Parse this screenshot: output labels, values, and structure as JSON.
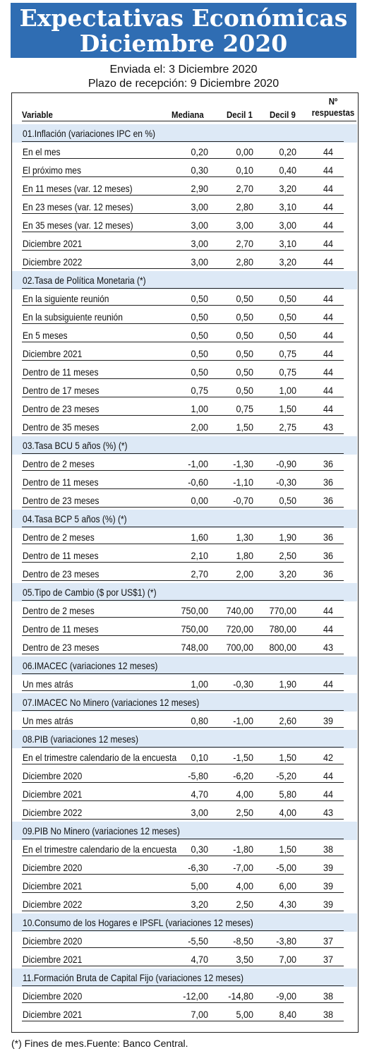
{
  "title": {
    "line1": "Expectativas Económicas",
    "line2": "Diciembre 2020"
  },
  "sent": "Enviada el: 3 Diciembre 2020",
  "deadline": "Plazo de recepción: 9 Diciembre 2020",
  "columns": {
    "variable": "Variable",
    "mediana": "Mediana",
    "decil1": "Decil 1",
    "decil9": "Decil 9",
    "n1": "Nº",
    "n2": "respuestas"
  },
  "rows": [
    {
      "type": "section",
      "label": "01.Inflación (variaciones IPC en %)"
    },
    {
      "type": "data",
      "label": "En el mes",
      "mediana": "0,20",
      "decil1": "0,00",
      "decil9": "0,20",
      "n": "44"
    },
    {
      "type": "data",
      "label": "El próximo mes",
      "mediana": "0,30",
      "decil1": "0,10",
      "decil9": "0,40",
      "n": "44"
    },
    {
      "type": "data",
      "label": "En 11 meses (var. 12 meses)",
      "mediana": "2,90",
      "decil1": "2,70",
      "decil9": "3,20",
      "n": "44"
    },
    {
      "type": "data",
      "label": "En 23 meses (var. 12 meses)",
      "mediana": "3,00",
      "decil1": "2,80",
      "decil9": "3,10",
      "n": "44"
    },
    {
      "type": "data",
      "label": "En 35 meses (var. 12 meses)",
      "mediana": "3,00",
      "decil1": "3,00",
      "decil9": "3,00",
      "n": "44"
    },
    {
      "type": "data",
      "label": "Diciembre 2021",
      "mediana": "3,00",
      "decil1": "2,70",
      "decil9": "3,10",
      "n": "44"
    },
    {
      "type": "data",
      "label": "Diciembre 2022",
      "mediana": "3,00",
      "decil1": "2,80",
      "decil9": "3,20",
      "n": "44"
    },
    {
      "type": "section",
      "label": "02.Tasa de Política Monetaria  (*)"
    },
    {
      "type": "data",
      "label": "En la siguiente reunión",
      "mediana": "0,50",
      "decil1": "0,50",
      "decil9": "0,50",
      "n": "44"
    },
    {
      "type": "data",
      "label": "En la subsiguiente reunión",
      "mediana": "0,50",
      "decil1": "0,50",
      "decil9": "0,50",
      "n": "44"
    },
    {
      "type": "data",
      "label": "En 5 meses",
      "mediana": "0,50",
      "decil1": "0,50",
      "decil9": "0,50",
      "n": "44"
    },
    {
      "type": "data",
      "label": "Diciembre 2021",
      "mediana": "0,50",
      "decil1": "0,50",
      "decil9": "0,75",
      "n": "44"
    },
    {
      "type": "data",
      "label": "Dentro de 11 meses",
      "mediana": "0,50",
      "decil1": "0,50",
      "decil9": "0,75",
      "n": "44"
    },
    {
      "type": "data",
      "label": "Dentro de 17 meses",
      "mediana": "0,75",
      "decil1": "0,50",
      "decil9": "1,00",
      "n": "44"
    },
    {
      "type": "data",
      "label": "Dentro de 23 meses",
      "mediana": "1,00",
      "decil1": "0,75",
      "decil9": "1,50",
      "n": "44"
    },
    {
      "type": "data",
      "label": "Dentro de 35 meses",
      "mediana": "2,00",
      "decil1": "1,50",
      "decil9": "2,75",
      "n": "43"
    },
    {
      "type": "section",
      "label": "03.Tasa BCU 5 años  (%)  (*)"
    },
    {
      "type": "data",
      "label": "Dentro de 2 meses",
      "mediana": "-1,00",
      "decil1": "-1,30",
      "decil9": "-0,90",
      "n": "36"
    },
    {
      "type": "data",
      "label": "Dentro de 11 meses",
      "mediana": "-0,60",
      "decil1": "-1,10",
      "decil9": "-0,30",
      "n": "36"
    },
    {
      "type": "data",
      "label": "Dentro de 23 meses",
      "mediana": "0,00",
      "decil1": "-0,70",
      "decil9": "0,50",
      "n": "36"
    },
    {
      "type": "section",
      "label": "04.Tasa BCP 5 años  (%) (*)"
    },
    {
      "type": "data",
      "label": "Dentro de 2 meses",
      "mediana": "1,60",
      "decil1": "1,30",
      "decil9": "1,90",
      "n": "36"
    },
    {
      "type": "data",
      "label": "Dentro de 11 meses",
      "mediana": "2,10",
      "decil1": "1,80",
      "decil9": "2,50",
      "n": "36"
    },
    {
      "type": "data",
      "label": "Dentro de 23 meses",
      "mediana": "2,70",
      "decil1": "2,00",
      "decil9": "3,20",
      "n": "36"
    },
    {
      "type": "section",
      "label": "05.Tipo de Cambio  ($ por US$1) (*)"
    },
    {
      "type": "data",
      "label": "Dentro de 2 meses",
      "mediana": "750,00",
      "decil1": "740,00",
      "decil9": "770,00",
      "n": "44"
    },
    {
      "type": "data",
      "label": "Dentro de 11 meses",
      "mediana": "750,00",
      "decil1": "720,00",
      "decil9": "780,00",
      "n": "44"
    },
    {
      "type": "data",
      "label": "Dentro de 23 meses",
      "mediana": "748,00",
      "decil1": "700,00",
      "decil9": "800,00",
      "n": "43"
    },
    {
      "type": "section",
      "label": "06.IMACEC  (variaciones 12 meses)"
    },
    {
      "type": "data",
      "label": "Un mes atrás",
      "mediana": "1,00",
      "decil1": "-0,30",
      "decil9": "1,90",
      "n": "44"
    },
    {
      "type": "section",
      "label": "07.IMACEC No Minero (variaciones 12 meses)"
    },
    {
      "type": "data",
      "label": "Un mes atrás",
      "mediana": "0,80",
      "decil1": "-1,00",
      "decil9": "2,60",
      "n": "39"
    },
    {
      "type": "section",
      "label": "08.PIB  (variaciones 12 meses)"
    },
    {
      "type": "data",
      "label": "En el trimestre calendario de la encuesta",
      "mediana": "0,10",
      "decil1": "-1,50",
      "decil9": "1,50",
      "n": "42"
    },
    {
      "type": "data",
      "label": "Diciembre 2020",
      "mediana": "-5,80",
      "decil1": "-6,20",
      "decil9": "-5,20",
      "n": "44"
    },
    {
      "type": "data",
      "label": "Diciembre 2021",
      "mediana": "4,70",
      "decil1": "4,00",
      "decil9": "5,80",
      "n": "44"
    },
    {
      "type": "data",
      "label": "Diciembre 2022",
      "mediana": "3,00",
      "decil1": "2,50",
      "decil9": "4,00",
      "n": "43"
    },
    {
      "type": "section",
      "label": "09.PIB No Minero (variaciones 12 meses)"
    },
    {
      "type": "data",
      "label": "En el trimestre calendario de la encuesta",
      "mediana": "0,30",
      "decil1": "-1,80",
      "decil9": "1,50",
      "n": "38"
    },
    {
      "type": "data",
      "label": "Diciembre 2020",
      "mediana": "-6,30",
      "decil1": "-7,00",
      "decil9": "-5,00",
      "n": "39"
    },
    {
      "type": "data",
      "label": "Diciembre 2021",
      "mediana": "5,00",
      "decil1": "4,00",
      "decil9": "6,00",
      "n": "39"
    },
    {
      "type": "data",
      "label": "Diciembre 2022",
      "mediana": "3,20",
      "decil1": "2,50",
      "decil9": "4,30",
      "n": "39"
    },
    {
      "type": "section",
      "label": "10.Consumo de los Hogares e IPSFL  (variaciones 12 meses)"
    },
    {
      "type": "data",
      "label": "Diciembre 2020",
      "mediana": "-5,50",
      "decil1": "-8,50",
      "decil9": "-3,80",
      "n": "37"
    },
    {
      "type": "data",
      "label": "Diciembre 2021",
      "mediana": "4,70",
      "decil1": "3,50",
      "decil9": "7,00",
      "n": "37"
    },
    {
      "type": "section",
      "label": "11.Formación Bruta de Capital Fijo  (variaciones 12 meses)"
    },
    {
      "type": "data",
      "label": "Diciembre 2020",
      "mediana": "-12,00",
      "decil1": "-14,80",
      "decil9": "-9,00",
      "n": "38"
    },
    {
      "type": "data",
      "label": "Diciembre 2021",
      "mediana": "7,00",
      "decil1": "5,00",
      "decil9": "8,40",
      "n": "38"
    }
  ],
  "footnote": "(*) Fines de mes.Fuente: Banco Central.",
  "colors": {
    "banner": "#2f6db3",
    "section_bg": "#dde9f6"
  }
}
